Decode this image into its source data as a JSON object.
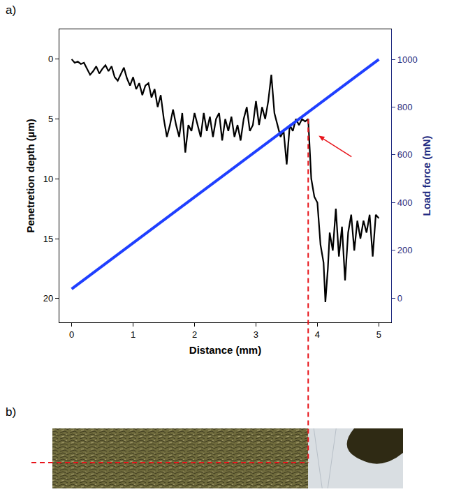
{
  "chart_data": {
    "type": "line",
    "panel_labels": [
      "a)",
      "b)"
    ],
    "x_label": "Distance (mm)",
    "y_label": "Penetretion depth (µm)",
    "y2_label": "Load force (mN)",
    "xlim": [
      -0.2,
      5.2
    ],
    "xticks": [
      0,
      1,
      2,
      3,
      4,
      5
    ],
    "ylim": [
      22,
      -2.5
    ],
    "yticks": [
      0,
      5,
      10,
      15,
      20
    ],
    "y2lim": [
      -102,
      1126
    ],
    "y2ticks": [
      0,
      200,
      400,
      600,
      800,
      1000
    ],
    "critical_distance": 3.85,
    "series": [
      {
        "color": "#000000",
        "x": [
          0,
          0.05,
          0.1,
          0.15,
          0.2,
          0.25,
          0.3,
          0.35,
          0.4,
          0.45,
          0.5,
          0.55,
          0.6,
          0.65,
          0.7,
          0.75,
          0.8,
          0.85,
          0.9,
          0.95,
          1.0,
          1.05,
          1.1,
          1.15,
          1.2,
          1.25,
          1.3,
          1.35,
          1.4,
          1.45,
          1.5,
          1.55,
          1.6,
          1.65,
          1.7,
          1.75,
          1.8,
          1.85,
          1.9,
          1.95,
          2.0,
          2.05,
          2.1,
          2.15,
          2.2,
          2.25,
          2.3,
          2.35,
          2.4,
          2.45,
          2.5,
          2.55,
          2.6,
          2.65,
          2.7,
          2.75,
          2.8,
          2.85,
          2.9,
          2.95,
          3.0,
          3.05,
          3.1,
          3.15,
          3.2,
          3.25,
          3.3,
          3.35,
          3.4,
          3.45,
          3.5,
          3.55,
          3.6,
          3.65,
          3.7,
          3.75,
          3.8,
          3.85,
          3.88,
          3.9,
          3.95,
          4.0,
          4.05,
          4.1,
          4.13,
          4.17,
          4.2,
          4.25,
          4.3,
          4.35,
          4.4,
          4.45,
          4.5,
          4.55,
          4.6,
          4.65,
          4.7,
          4.75,
          4.8,
          4.85,
          4.9,
          4.95,
          5.0
        ],
        "values": [
          0,
          0.3,
          0.2,
          0.4,
          0.3,
          0.8,
          1.3,
          1.0,
          0.6,
          1.2,
          0.8,
          0.5,
          1.0,
          0.6,
          1.5,
          1.8,
          1.2,
          0.7,
          1.6,
          2.2,
          1.5,
          2.5,
          2.0,
          3.0,
          2.2,
          2.0,
          3.2,
          2.5,
          4.0,
          3.0,
          5.0,
          6.5,
          5.5,
          4.2,
          5.5,
          6.5,
          4.5,
          7.8,
          5.5,
          6.0,
          4.5,
          5.5,
          6.5,
          4.5,
          6.0,
          4.8,
          6.5,
          5.0,
          4.5,
          6.8,
          5.0,
          6.0,
          4.8,
          6.5,
          5.5,
          6.8,
          5.0,
          4.0,
          6.0,
          5.5,
          3.5,
          5.5,
          4.0,
          5.0,
          3.5,
          1.3,
          4.5,
          5.5,
          6.5,
          6.0,
          8.8,
          5.5,
          6.0,
          5.0,
          5.5,
          5.0,
          5.2,
          5.0,
          8.5,
          10.0,
          11.5,
          12.0,
          15.5,
          17.0,
          20.3,
          17.5,
          14.5,
          16.0,
          12.5,
          16.5,
          14.0,
          18.5,
          14.5,
          13.0,
          16.0,
          13.5,
          15.0,
          13.5,
          14.5,
          13.0,
          16.5,
          13.0,
          13.3
        ]
      },
      {
        "color": "#1f3fff",
        "axis": "y2",
        "x": [
          0,
          5
        ],
        "values": [
          38,
          1000
        ]
      }
    ]
  }
}
